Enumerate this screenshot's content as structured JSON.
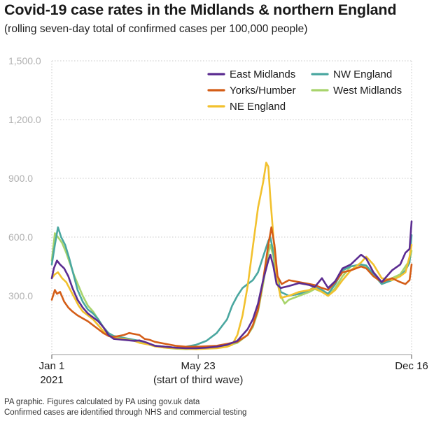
{
  "header": {
    "title": "Covid-19 case rates in the Midlands & northern England",
    "subtitle": "(rolling seven-day total of confirmed cases per 100,000 people)"
  },
  "footer": {
    "line1": "PA graphic. Figures calculated by PA using gov.uk data",
    "line2": "Confirmed cases are identified through NHS and commercial testing"
  },
  "chart_data": {
    "type": "line",
    "title": "Covid-19 case rates in the Midlands & northern England",
    "ylabel": "rolling seven-day total of confirmed cases per 100,000 people",
    "xlabel": "",
    "x_domain": [
      0,
      349
    ],
    "ylim": [
      0,
      1500
    ],
    "y_ticks": [
      {
        "value": 300,
        "label": "300.0"
      },
      {
        "value": 600,
        "label": "600.0"
      },
      {
        "value": 900,
        "label": "900.0"
      },
      {
        "value": 1200,
        "label": "1,200.0"
      },
      {
        "value": 1500,
        "label": "1,500.0"
      }
    ],
    "x_ticks": [
      {
        "day": 0,
        "label": "Jan 1",
        "sublabel": "2021"
      },
      {
        "day": 142,
        "label": "May 23",
        "sublabel": "(start of third wave)"
      },
      {
        "day": 349,
        "label": "Dec 16",
        "sublabel": ""
      }
    ],
    "legend_position": "top-right",
    "series": [
      {
        "name": "East Midlands",
        "color": "#5b2c91",
        "points": [
          [
            0,
            390
          ],
          [
            2,
            440
          ],
          [
            5,
            480
          ],
          [
            8,
            460
          ],
          [
            12,
            440
          ],
          [
            16,
            400
          ],
          [
            20,
            340
          ],
          [
            25,
            280
          ],
          [
            30,
            240
          ],
          [
            35,
            210
          ],
          [
            40,
            190
          ],
          [
            45,
            170
          ],
          [
            50,
            140
          ],
          [
            55,
            100
          ],
          [
            60,
            80
          ],
          [
            70,
            75
          ],
          [
            80,
            70
          ],
          [
            85,
            72
          ],
          [
            90,
            65
          ],
          [
            95,
            55
          ],
          [
            100,
            45
          ],
          [
            110,
            40
          ],
          [
            120,
            35
          ],
          [
            130,
            32
          ],
          [
            140,
            32
          ],
          [
            150,
            35
          ],
          [
            160,
            40
          ],
          [
            170,
            50
          ],
          [
            180,
            70
          ],
          [
            190,
            130
          ],
          [
            195,
            180
          ],
          [
            200,
            260
          ],
          [
            205,
            380
          ],
          [
            210,
            480
          ],
          [
            212,
            510
          ],
          [
            215,
            450
          ],
          [
            218,
            360
          ],
          [
            222,
            340
          ],
          [
            230,
            350
          ],
          [
            240,
            365
          ],
          [
            250,
            355
          ],
          [
            255,
            345
          ],
          [
            262,
            390
          ],
          [
            268,
            340
          ],
          [
            275,
            375
          ],
          [
            282,
            440
          ],
          [
            290,
            460
          ],
          [
            300,
            510
          ],
          [
            305,
            490
          ],
          [
            312,
            420
          ],
          [
            320,
            370
          ],
          [
            330,
            430
          ],
          [
            338,
            460
          ],
          [
            343,
            520
          ],
          [
            347,
            540
          ],
          [
            349,
            680
          ]
        ]
      },
      {
        "name": "Yorks/Humber",
        "color": "#d45d17",
        "points": [
          [
            0,
            280
          ],
          [
            3,
            330
          ],
          [
            5,
            310
          ],
          [
            8,
            320
          ],
          [
            12,
            270
          ],
          [
            16,
            240
          ],
          [
            20,
            220
          ],
          [
            25,
            200
          ],
          [
            30,
            185
          ],
          [
            35,
            170
          ],
          [
            40,
            150
          ],
          [
            45,
            130
          ],
          [
            50,
            110
          ],
          [
            55,
            95
          ],
          [
            60,
            90
          ],
          [
            70,
            100
          ],
          [
            75,
            110
          ],
          [
            80,
            105
          ],
          [
            85,
            100
          ],
          [
            90,
            80
          ],
          [
            95,
            75
          ],
          [
            100,
            65
          ],
          [
            110,
            55
          ],
          [
            120,
            45
          ],
          [
            130,
            40
          ],
          [
            140,
            40
          ],
          [
            150,
            42
          ],
          [
            160,
            45
          ],
          [
            170,
            55
          ],
          [
            180,
            65
          ],
          [
            190,
            100
          ],
          [
            195,
            150
          ],
          [
            200,
            230
          ],
          [
            205,
            380
          ],
          [
            210,
            560
          ],
          [
            213,
            650
          ],
          [
            216,
            560
          ],
          [
            219,
            400
          ],
          [
            223,
            360
          ],
          [
            230,
            380
          ],
          [
            240,
            370
          ],
          [
            250,
            360
          ],
          [
            255,
            355
          ],
          [
            262,
            340
          ],
          [
            268,
            330
          ],
          [
            275,
            370
          ],
          [
            282,
            420
          ],
          [
            290,
            430
          ],
          [
            300,
            450
          ],
          [
            305,
            440
          ],
          [
            312,
            400
          ],
          [
            320,
            370
          ],
          [
            330,
            390
          ],
          [
            338,
            370
          ],
          [
            343,
            360
          ],
          [
            347,
            380
          ],
          [
            349,
            460
          ]
        ]
      },
      {
        "name": "NE England",
        "color": "#f2c12e",
        "points": [
          [
            0,
            390
          ],
          [
            3,
            410
          ],
          [
            6,
            420
          ],
          [
            10,
            390
          ],
          [
            14,
            370
          ],
          [
            18,
            330
          ],
          [
            22,
            290
          ],
          [
            26,
            250
          ],
          [
            30,
            220
          ],
          [
            35,
            200
          ],
          [
            40,
            180
          ],
          [
            45,
            150
          ],
          [
            50,
            120
          ],
          [
            55,
            95
          ],
          [
            60,
            85
          ],
          [
            70,
            80
          ],
          [
            80,
            70
          ],
          [
            85,
            60
          ],
          [
            90,
            55
          ],
          [
            95,
            50
          ],
          [
            100,
            42
          ],
          [
            110,
            35
          ],
          [
            120,
            32
          ],
          [
            130,
            30
          ],
          [
            140,
            28
          ],
          [
            150,
            30
          ],
          [
            160,
            32
          ],
          [
            170,
            40
          ],
          [
            175,
            50
          ],
          [
            180,
            100
          ],
          [
            185,
            200
          ],
          [
            190,
            350
          ],
          [
            195,
            550
          ],
          [
            200,
            750
          ],
          [
            205,
            880
          ],
          [
            208,
            980
          ],
          [
            210,
            960
          ],
          [
            212,
            800
          ],
          [
            215,
            600
          ],
          [
            218,
            400
          ],
          [
            222,
            290
          ],
          [
            230,
            300
          ],
          [
            240,
            320
          ],
          [
            250,
            330
          ],
          [
            255,
            340
          ],
          [
            262,
            320
          ],
          [
            268,
            300
          ],
          [
            275,
            330
          ],
          [
            282,
            380
          ],
          [
            290,
            430
          ],
          [
            300,
            470
          ],
          [
            305,
            500
          ],
          [
            312,
            460
          ],
          [
            320,
            390
          ],
          [
            330,
            380
          ],
          [
            338,
            400
          ],
          [
            343,
            420
          ],
          [
            347,
            500
          ],
          [
            349,
            560
          ]
        ]
      },
      {
        "name": "NW England",
        "color": "#4aa7a0",
        "points": [
          [
            0,
            460
          ],
          [
            3,
            560
          ],
          [
            6,
            650
          ],
          [
            9,
            600
          ],
          [
            13,
            560
          ],
          [
            17,
            490
          ],
          [
            21,
            410
          ],
          [
            25,
            330
          ],
          [
            30,
            270
          ],
          [
            35,
            230
          ],
          [
            40,
            210
          ],
          [
            45,
            180
          ],
          [
            50,
            140
          ],
          [
            55,
            110
          ],
          [
            60,
            95
          ],
          [
            70,
            85
          ],
          [
            80,
            75
          ],
          [
            85,
            70
          ],
          [
            90,
            60
          ],
          [
            95,
            50
          ],
          [
            100,
            45
          ],
          [
            110,
            40
          ],
          [
            120,
            35
          ],
          [
            130,
            40
          ],
          [
            140,
            50
          ],
          [
            150,
            70
          ],
          [
            160,
            110
          ],
          [
            170,
            180
          ],
          [
            175,
            250
          ],
          [
            180,
            300
          ],
          [
            185,
            340
          ],
          [
            190,
            360
          ],
          [
            195,
            380
          ],
          [
            200,
            420
          ],
          [
            205,
            500
          ],
          [
            210,
            580
          ],
          [
            212,
            600
          ],
          [
            215,
            520
          ],
          [
            218,
            420
          ],
          [
            222,
            320
          ],
          [
            230,
            300
          ],
          [
            240,
            310
          ],
          [
            250,
            330
          ],
          [
            255,
            345
          ],
          [
            262,
            330
          ],
          [
            268,
            310
          ],
          [
            275,
            360
          ],
          [
            282,
            430
          ],
          [
            290,
            450
          ],
          [
            300,
            460
          ],
          [
            305,
            455
          ],
          [
            312,
            410
          ],
          [
            320,
            360
          ],
          [
            330,
            380
          ],
          [
            338,
            400
          ],
          [
            343,
            430
          ],
          [
            347,
            470
          ],
          [
            349,
            610
          ]
        ]
      },
      {
        "name": "West Midlands",
        "color": "#a8d46c",
        "points": [
          [
            0,
            480
          ],
          [
            3,
            620
          ],
          [
            6,
            600
          ],
          [
            10,
            570
          ],
          [
            14,
            520
          ],
          [
            18,
            460
          ],
          [
            22,
            400
          ],
          [
            26,
            350
          ],
          [
            30,
            300
          ],
          [
            35,
            250
          ],
          [
            40,
            220
          ],
          [
            45,
            180
          ],
          [
            50,
            140
          ],
          [
            55,
            105
          ],
          [
            60,
            90
          ],
          [
            70,
            80
          ],
          [
            80,
            70
          ],
          [
            85,
            65
          ],
          [
            90,
            60
          ],
          [
            95,
            50
          ],
          [
            100,
            42
          ],
          [
            110,
            35
          ],
          [
            120,
            30
          ],
          [
            130,
            28
          ],
          [
            140,
            30
          ],
          [
            150,
            35
          ],
          [
            160,
            40
          ],
          [
            170,
            45
          ],
          [
            180,
            60
          ],
          [
            190,
            100
          ],
          [
            195,
            140
          ],
          [
            200,
            220
          ],
          [
            205,
            360
          ],
          [
            210,
            520
          ],
          [
            212,
            560
          ],
          [
            215,
            500
          ],
          [
            218,
            380
          ],
          [
            222,
            300
          ],
          [
            226,
            260
          ],
          [
            230,
            280
          ],
          [
            240,
            300
          ],
          [
            250,
            320
          ],
          [
            255,
            335
          ],
          [
            262,
            320
          ],
          [
            268,
            300
          ],
          [
            275,
            340
          ],
          [
            282,
            400
          ],
          [
            290,
            450
          ],
          [
            300,
            460
          ],
          [
            305,
            450
          ],
          [
            312,
            400
          ],
          [
            320,
            370
          ],
          [
            330,
            390
          ],
          [
            338,
            410
          ],
          [
            343,
            450
          ],
          [
            347,
            480
          ],
          [
            349,
            530
          ]
        ]
      }
    ]
  }
}
